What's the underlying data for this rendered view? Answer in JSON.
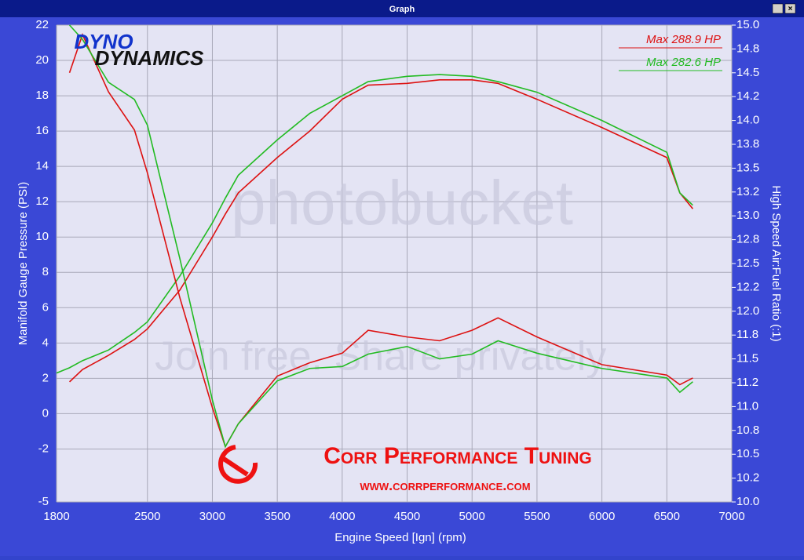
{
  "window_title": "Graph",
  "chart_data": {
    "type": "line",
    "x_label": "Engine Speed [Ign] (rpm)",
    "y_label": "Manifold Gauge Pressure (PSI)",
    "y2_label": "High Speed Air:Fuel Ratio (:1)",
    "legend": [
      {
        "label": "Max 288.9 HP",
        "color": "#dd1111"
      },
      {
        "label": "Max 282.6 HP",
        "color": "#22bb22"
      }
    ],
    "branding": {
      "logo_top": "DYNO",
      "logo_bottom": "DYNAMICS",
      "shop": "Corr Performance Tuning",
      "website": "www.corrperformance.com"
    },
    "watermark": {
      "brand": "photobucket",
      "slogan": "Join free. Share privately."
    },
    "grid": true,
    "xlim": [
      1800,
      7000
    ],
    "xticks": [
      1800,
      2500,
      3000,
      3500,
      4000,
      4500,
      5000,
      5500,
      6000,
      6500,
      7000
    ],
    "ylim": [
      -5,
      22
    ],
    "yticks": [
      22,
      20,
      18,
      16,
      14,
      12,
      10,
      8,
      6,
      4,
      2,
      0,
      -2,
      -5
    ],
    "y2lim": [
      10,
      15
    ],
    "y2ticks": [
      {
        "value": 15,
        "label": "15.0"
      },
      {
        "value": 14.75,
        "label": "14.8"
      },
      {
        "value": 14.5,
        "label": "14.5"
      },
      {
        "value": 14.25,
        "label": "14.2"
      },
      {
        "value": 14,
        "label": "14.0"
      },
      {
        "value": 13.75,
        "label": "13.8"
      },
      {
        "value": 13.5,
        "label": "13.5"
      },
      {
        "value": 13.25,
        "label": "13.2"
      },
      {
        "value": 13,
        "label": "13.0"
      },
      {
        "value": 12.75,
        "label": "12.8"
      },
      {
        "value": 12.5,
        "label": "12.5"
      },
      {
        "value": 12.25,
        "label": "12.2"
      },
      {
        "value": 12,
        "label": "12.0"
      },
      {
        "value": 11.75,
        "label": "11.8"
      },
      {
        "value": 11.5,
        "label": "11.5"
      },
      {
        "value": 11.25,
        "label": "11.2"
      },
      {
        "value": 11,
        "label": "11.0"
      },
      {
        "value": 10.75,
        "label": "10.8"
      },
      {
        "value": 10.5,
        "label": "10.5"
      },
      {
        "value": 10.25,
        "label": "10.2"
      },
      {
        "value": 10,
        "label": "10.0"
      }
    ],
    "x": [
      1800,
      1900,
      2000,
      2200,
      2400,
      2500,
      2750,
      3000,
      3100,
      3200,
      3500,
      3750,
      4000,
      4200,
      4500,
      4750,
      5000,
      5200,
      5500,
      6000,
      6500,
      6600,
      6700
    ],
    "series": [
      {
        "color": "#dd1111",
        "values": [
          null,
          1.8,
          2.5,
          3.3,
          4.2,
          4.8,
          7,
          10,
          11.3,
          12.5,
          14.5,
          16,
          17.8,
          18.6,
          18.7,
          18.9,
          18.9,
          18.7,
          17.8,
          16.2,
          14.5,
          12.5,
          11.6
        ]
      },
      {
        "color": "#22bb22",
        "values": [
          2.3,
          2.6,
          3,
          3.6,
          4.6,
          5.2,
          7.8,
          10.8,
          12.2,
          13.5,
          15.5,
          17,
          18,
          18.8,
          19.1,
          19.2,
          19.1,
          18.8,
          18.2,
          16.6,
          14.8,
          12.5,
          11.8
        ]
      },
      {
        "color": "#dd1111",
        "axis": "y2",
        "values": [
          null,
          14.5,
          14.9,
          14.3,
          13.9,
          13.45,
          12.14,
          10.99,
          10.58,
          10.82,
          11.32,
          11.46,
          11.56,
          11.8,
          11.73,
          11.69,
          11.8,
          11.93,
          11.73,
          11.44,
          11.33,
          11.23,
          11.3
        ]
      },
      {
        "color": "#22bb22",
        "axis": "y2",
        "values": [
          null,
          15,
          14.85,
          14.4,
          14.22,
          13.95,
          12.55,
          11.07,
          10.58,
          10.82,
          11.27,
          11.4,
          11.42,
          11.55,
          11.63,
          11.5,
          11.55,
          11.69,
          11.56,
          11.4,
          11.3,
          11.15,
          11.26
        ]
      }
    ]
  }
}
